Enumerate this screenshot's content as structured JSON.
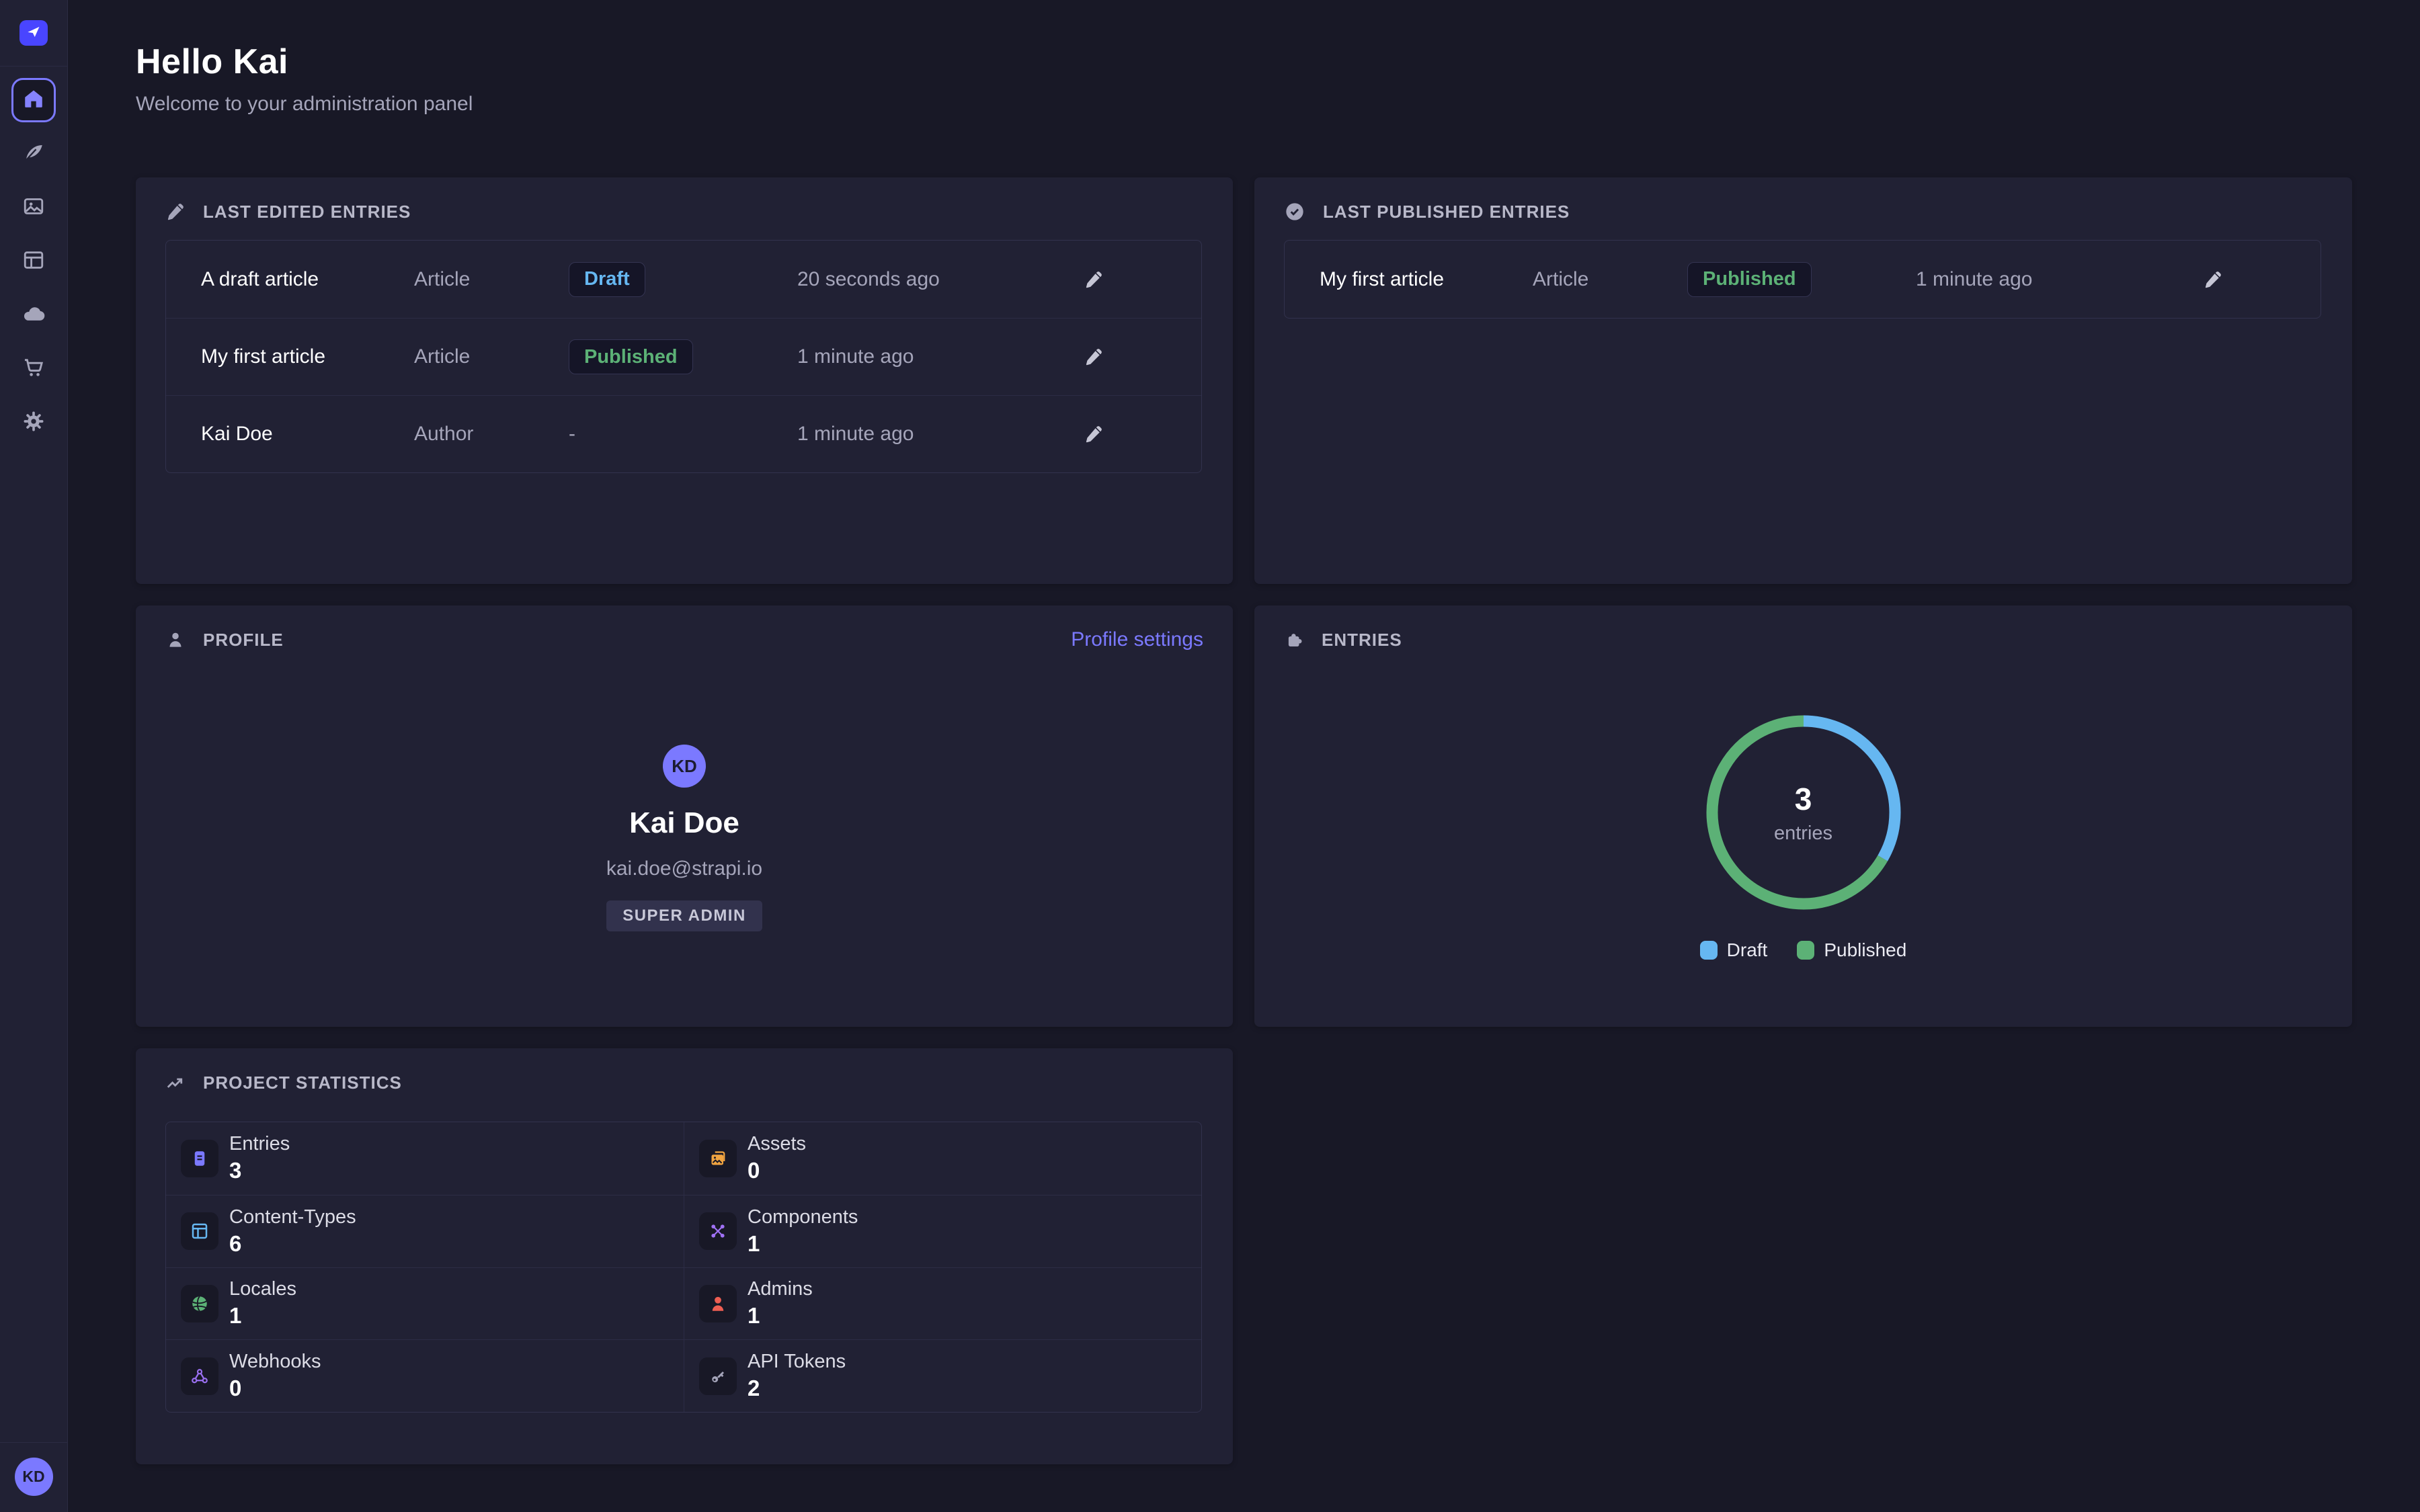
{
  "colors": {
    "accent": "#7b79ff",
    "logo": "#4945ff",
    "draft_text": "#66b7f1",
    "published_text": "#5cb176",
    "panel_bg": "#212134",
    "app_bg": "#181826"
  },
  "sidebar": {
    "items": [
      {
        "icon": "home-icon",
        "active": true
      },
      {
        "icon": "feather-icon",
        "active": false
      },
      {
        "icon": "media-icon",
        "active": false
      },
      {
        "icon": "layout-icon",
        "active": false
      },
      {
        "icon": "cloud-icon",
        "active": false
      },
      {
        "icon": "cart-icon",
        "active": false
      },
      {
        "icon": "gear-icon",
        "active": false
      }
    ],
    "user_initials": "KD"
  },
  "header": {
    "title": "Hello Kai",
    "subtitle": "Welcome to your administration panel"
  },
  "panels": {
    "last_edited": {
      "title": "LAST EDITED ENTRIES",
      "rows": [
        {
          "name": "A draft article",
          "type": "Article",
          "status": "Draft",
          "time": "20 seconds ago"
        },
        {
          "name": "My first article",
          "type": "Article",
          "status": "Published",
          "time": "1 minute ago"
        },
        {
          "name": "Kai Doe",
          "type": "Author",
          "status": "-",
          "time": "1 minute ago"
        }
      ]
    },
    "last_published": {
      "title": "LAST PUBLISHED ENTRIES",
      "rows": [
        {
          "name": "My first article",
          "type": "Article",
          "status": "Published",
          "time": "1 minute ago"
        }
      ]
    },
    "profile": {
      "title": "PROFILE",
      "link_label": "Profile settings",
      "initials": "KD",
      "name": "Kai Doe",
      "email": "kai.doe@strapi.io",
      "role": "SUPER ADMIN"
    },
    "entries": {
      "title": "ENTRIES"
    },
    "stats": {
      "title": "PROJECT STATISTICS",
      "items": [
        {
          "label": "Entries",
          "value": "3",
          "icon": "file-icon",
          "color": "#7b79ff"
        },
        {
          "label": "Assets",
          "value": "0",
          "icon": "images-icon",
          "color": "#f0a441"
        },
        {
          "label": "Content-Types",
          "value": "6",
          "icon": "layout-icon",
          "color": "#66b7f1"
        },
        {
          "label": "Components",
          "value": "1",
          "icon": "components-icon",
          "color": "#a071f5"
        },
        {
          "label": "Locales",
          "value": "1",
          "icon": "globe-icon",
          "color": "#5cb176"
        },
        {
          "label": "Admins",
          "value": "1",
          "icon": "user-icon",
          "color": "#ee5e52"
        },
        {
          "label": "Webhooks",
          "value": "0",
          "icon": "webhook-icon",
          "color": "#9a6ff0"
        },
        {
          "label": "API Tokens",
          "value": "2",
          "icon": "key-icon",
          "color": "#a5a5ba"
        }
      ]
    }
  },
  "chart_data": {
    "type": "pie",
    "title": "ENTRIES",
    "categories": [
      "Draft",
      "Published"
    ],
    "values": [
      1,
      2
    ],
    "colors": [
      "#66b7f1",
      "#5cb176"
    ],
    "center_value": "3",
    "center_label": "entries",
    "legend_position": "bottom"
  }
}
